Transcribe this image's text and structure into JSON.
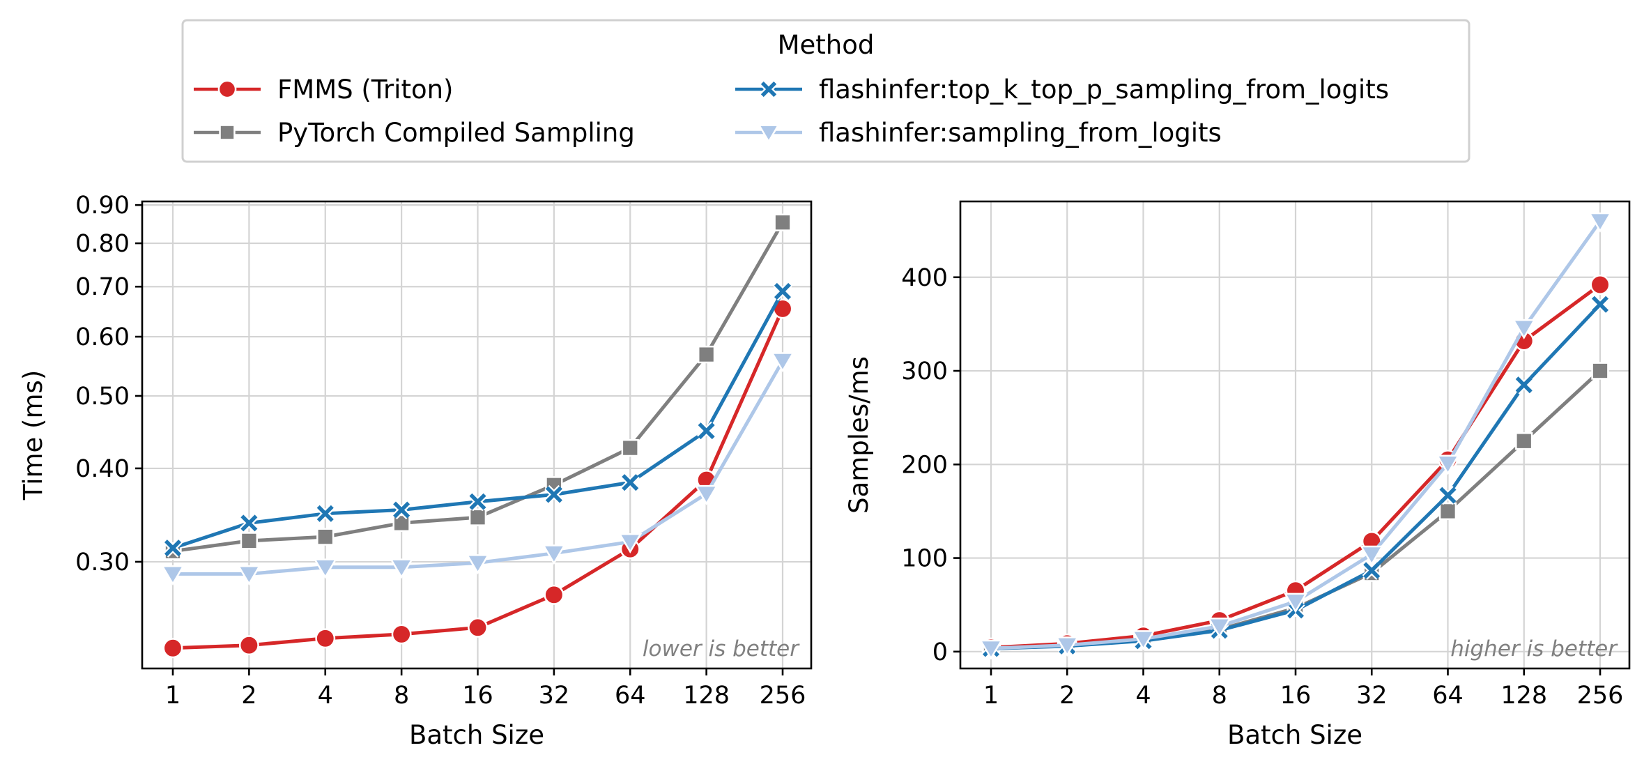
{
  "legend": {
    "title": "Method",
    "entries": [
      {
        "label": "FMMS (Triton)",
        "color": "#d62728",
        "marker": "circle"
      },
      {
        "label": "flashinfer:top_k_top_p_sampling_from_logits",
        "color": "#1f77b4",
        "marker": "x"
      },
      {
        "label": "PyTorch Compiled Sampling",
        "color": "#7f7f7f",
        "marker": "square"
      },
      {
        "label": "flashinfer:sampling_from_logits",
        "color": "#aec7e8",
        "marker": "triangle-down"
      }
    ]
  },
  "chart_data": [
    {
      "type": "line",
      "title": "",
      "xlabel": "Batch Size",
      "ylabel": "Time (ms)",
      "annotation": "lower is better",
      "x_scale": "log2",
      "y_scale": "log",
      "categories": [
        "1",
        "2",
        "4",
        "8",
        "16",
        "32",
        "64",
        "128",
        "256"
      ],
      "x": [
        1,
        2,
        4,
        8,
        16,
        32,
        64,
        128,
        256
      ],
      "ylim": [
        0.216,
        0.91
      ],
      "yticks": [
        0.3,
        0.4,
        0.5,
        0.6,
        0.7,
        0.8,
        0.9
      ],
      "ytick_labels": [
        "0.30",
        "0.40",
        "0.50",
        "0.60",
        "0.70",
        "0.80",
        "0.90"
      ],
      "grid": true,
      "series": [
        {
          "name": "FMMS (Triton)",
          "color": "#d62728",
          "marker": "circle",
          "values": [
            0.23,
            0.232,
            0.237,
            0.24,
            0.245,
            0.271,
            0.312,
            0.386,
            0.654
          ]
        },
        {
          "name": "PyTorch Compiled Sampling",
          "color": "#7f7f7f",
          "marker": "square",
          "values": [
            0.31,
            0.32,
            0.324,
            0.338,
            0.344,
            0.38,
            0.426,
            0.568,
            0.853
          ]
        },
        {
          "name": "flashinfer:top_k_top_p_sampling_from_logits",
          "color": "#1f77b4",
          "marker": "x",
          "values": [
            0.313,
            0.338,
            0.348,
            0.352,
            0.361,
            0.369,
            0.383,
            0.449,
            0.69
          ]
        },
        {
          "name": "flashinfer:sampling_from_logits",
          "color": "#aec7e8",
          "marker": "triangle-down",
          "values": [
            0.289,
            0.289,
            0.295,
            0.295,
            0.299,
            0.308,
            0.319,
            0.37,
            0.557
          ]
        }
      ]
    },
    {
      "type": "line",
      "title": "",
      "xlabel": "Batch Size",
      "ylabel": "Samples/ms",
      "annotation": "higher is better",
      "x_scale": "log2",
      "y_scale": "linear",
      "categories": [
        "1",
        "2",
        "4",
        "8",
        "16",
        "32",
        "64",
        "128",
        "256"
      ],
      "x": [
        1,
        2,
        4,
        8,
        16,
        32,
        64,
        128,
        256
      ],
      "ylim": [
        -18,
        481
      ],
      "yticks": [
        0,
        100,
        200,
        300,
        400
      ],
      "ytick_labels": [
        "0",
        "100",
        "200",
        "300",
        "400"
      ],
      "grid": true,
      "series": [
        {
          "name": "FMMS (Triton)",
          "color": "#d62728",
          "marker": "circle",
          "values": [
            4.3,
            8.6,
            16.9,
            33.3,
            65.3,
            118,
            205,
            332,
            392
          ]
        },
        {
          "name": "PyTorch Compiled Sampling",
          "color": "#7f7f7f",
          "marker": "square",
          "values": [
            3.2,
            6.3,
            12.3,
            23.7,
            46.5,
            84,
            150,
            225,
            300
          ]
        },
        {
          "name": "flashinfer:top_k_top_p_sampling_from_logits",
          "color": "#1f77b4",
          "marker": "x",
          "values": [
            3.2,
            5.9,
            11.5,
            22.7,
            44.3,
            86.7,
            167,
            285,
            371
          ]
        },
        {
          "name": "flashinfer:sampling_from_logits",
          "color": "#aec7e8",
          "marker": "triangle-down",
          "values": [
            3.5,
            6.9,
            13.6,
            27.1,
            53.5,
            104,
            201,
            346,
            460
          ]
        }
      ]
    }
  ]
}
